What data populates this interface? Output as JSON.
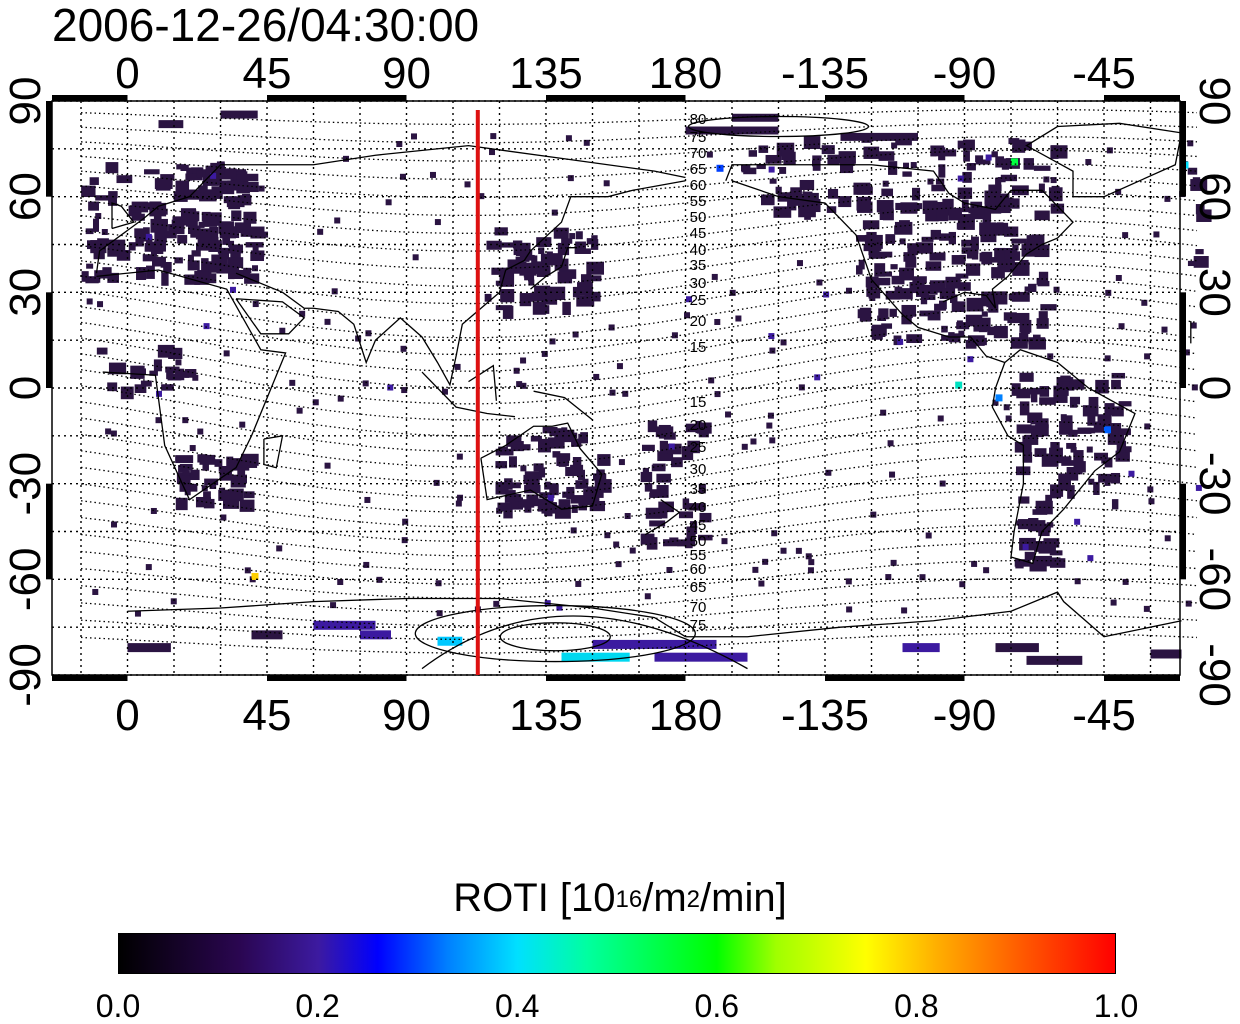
{
  "title": "2006-12-26/04:30:00",
  "axes": {
    "lon_ticks": [
      "0",
      "45",
      "90",
      "135",
      "180",
      "-135",
      "-90",
      "-45"
    ],
    "lat_ticks": [
      "90",
      "60",
      "30",
      "0",
      "-30",
      "-60",
      "-90"
    ]
  },
  "contour_labels": [
    "80",
    "75",
    "70",
    "65",
    "60",
    "55",
    "50",
    "45",
    "40",
    "35",
    "30",
    "25",
    "20",
    "15",
    "15",
    "20",
    "25",
    "30",
    "35",
    "40",
    "45",
    "50",
    "55",
    "60",
    "65",
    "70",
    "75"
  ],
  "terminator_longitude": 113,
  "colorbar": {
    "label_prefix": "ROTI  [10",
    "label_sup1": "16",
    "label_mid": "/m",
    "label_sup2": "2",
    "label_suffix": "/min]",
    "ticks": [
      "0.0",
      "0.2",
      "0.4",
      "0.6",
      "0.8",
      "1.0"
    ],
    "range": [
      0.0,
      1.0
    ]
  },
  "colors": {
    "terminator": "#dd1111",
    "data_low": "#2a1040",
    "data_mid": "#3c1aa0",
    "data_high": "#00e0ff"
  }
}
